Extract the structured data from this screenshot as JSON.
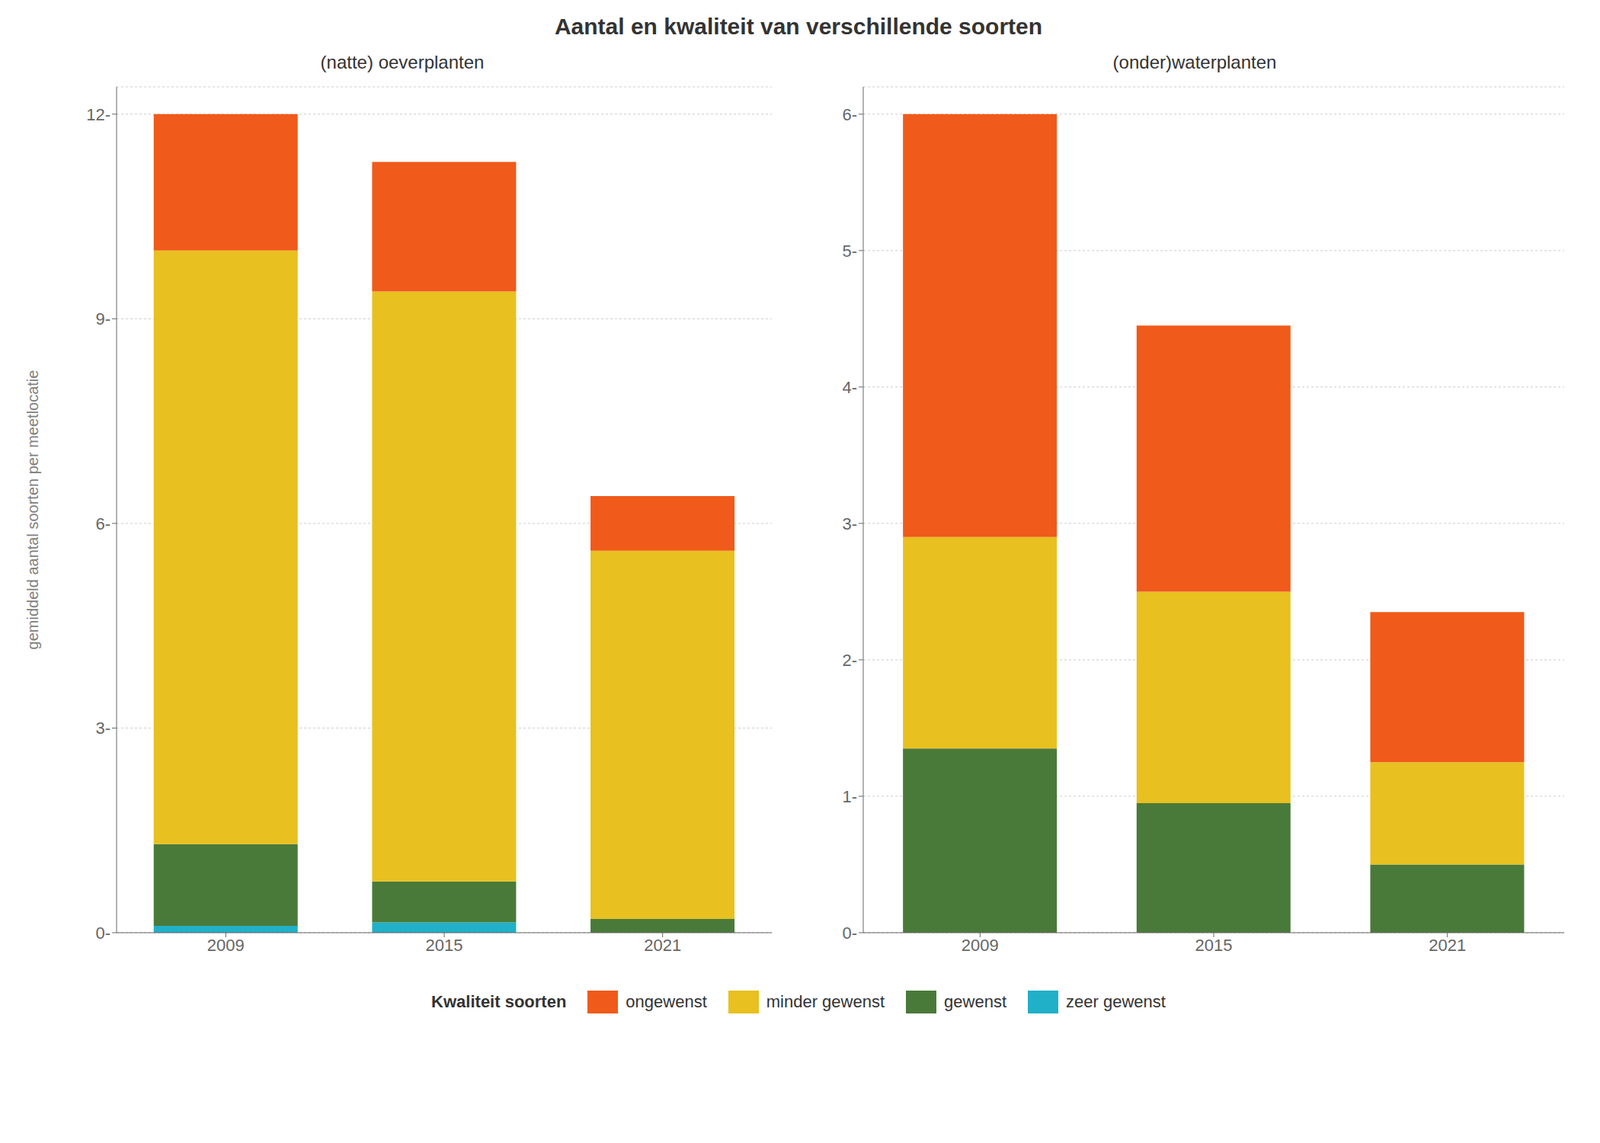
{
  "title": "Aantal en kwaliteit van verschillende soorten",
  "legend_title": "Kwaliteit soorten",
  "legend": "bottom",
  "chart_data": [
    {
      "type": "bar",
      "stacked": true,
      "title": "(natte) oeverplanten",
      "ylabel": "gemiddeld aantal soorten per meetlocatie",
      "categories": [
        "2009",
        "2015",
        "2021"
      ],
      "series": [
        {
          "name": "zeer gewenst",
          "color": "#20B0C8",
          "values": [
            0.1,
            0.15,
            0.0
          ]
        },
        {
          "name": "gewenst",
          "color": "#4A7A3A",
          "values": [
            1.2,
            0.6,
            0.2
          ]
        },
        {
          "name": "minder gewenst",
          "color": "#E8C020",
          "values": [
            8.7,
            8.65,
            5.4
          ]
        },
        {
          "name": "ongewenst",
          "color": "#F05A1A",
          "values": [
            2.0,
            1.9,
            0.8
          ]
        }
      ],
      "ylim": [
        0,
        12.4
      ],
      "yticks": [
        {
          "value": 0,
          "label": "0-"
        },
        {
          "value": 3,
          "label": "3-"
        },
        {
          "value": 6,
          "label": "6-"
        },
        {
          "value": 9,
          "label": "9-"
        },
        {
          "value": 12,
          "label": "12-"
        }
      ],
      "grid": true
    },
    {
      "type": "bar",
      "stacked": true,
      "title": "(onder)waterplanten",
      "categories": [
        "2009",
        "2015",
        "2021"
      ],
      "series": [
        {
          "name": "zeer gewenst",
          "color": "#20B0C8",
          "values": [
            0.0,
            0.0,
            0.0
          ]
        },
        {
          "name": "gewenst",
          "color": "#4A7A3A",
          "values": [
            1.35,
            0.95,
            0.5
          ]
        },
        {
          "name": "minder gewenst",
          "color": "#E8C020",
          "values": [
            1.55,
            1.55,
            0.75
          ]
        },
        {
          "name": "ongewenst",
          "color": "#F05A1A",
          "values": [
            3.1,
            1.95,
            1.1
          ]
        }
      ],
      "ylim": [
        0,
        6.2
      ],
      "yticks": [
        {
          "value": 0,
          "label": "0-"
        },
        {
          "value": 1,
          "label": "1-"
        },
        {
          "value": 2,
          "label": "2-"
        },
        {
          "value": 3,
          "label": "3-"
        },
        {
          "value": 4,
          "label": "4-"
        },
        {
          "value": 5,
          "label": "5-"
        },
        {
          "value": 6,
          "label": "6-"
        }
      ],
      "grid": true
    }
  ]
}
